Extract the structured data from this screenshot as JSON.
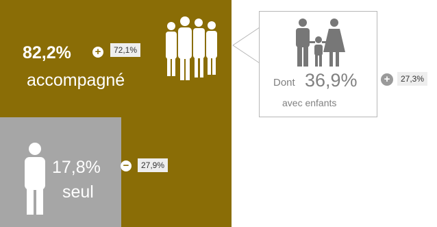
{
  "accompanied": {
    "percent": "82,2%",
    "label": "accompagné",
    "change_sign": "+",
    "change_value": "72,1%",
    "icon": "group-people-icon",
    "color": "#8a6d06"
  },
  "alone": {
    "percent": "17,8%",
    "label": "seul",
    "change_sign": "−",
    "change_value": "27,9%",
    "icon": "person-icon",
    "color": "#a6a6a6"
  },
  "children": {
    "prefix": "Dont",
    "percent": "36,9%",
    "label": "avec enfants",
    "change_sign": "+",
    "change_value": "27,3%",
    "icon": "family-icon"
  }
}
